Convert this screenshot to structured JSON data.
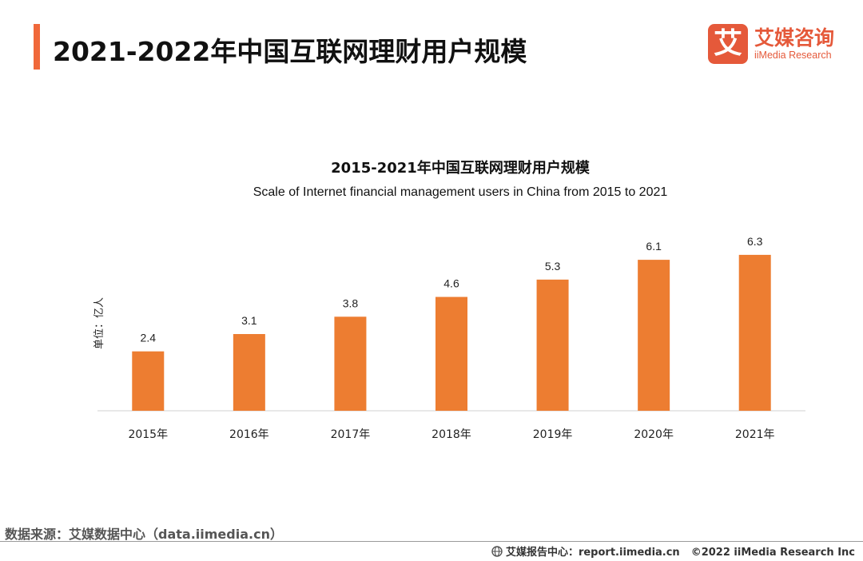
{
  "header": {
    "title": "2021-2022年中国互联网理财用户规模"
  },
  "logo": {
    "mark": "艾",
    "cn": "艾媒咨询",
    "en": "iiMedia Research"
  },
  "chart_data": {
    "type": "bar",
    "title": "2015-2021年中国互联网理财用户规模",
    "subtitle": "Scale of Internet financial management users in China from 2015 to 2021",
    "ylabel": "单位：亿人",
    "categories": [
      "2015年",
      "2016年",
      "2017年",
      "2018年",
      "2019年",
      "2020年",
      "2021年"
    ],
    "values": [
      2.4,
      3.1,
      3.8,
      4.6,
      5.3,
      6.1,
      6.3
    ],
    "data_labels": [
      "2.4",
      "3.1",
      "3.8",
      "4.6",
      "5.3",
      "6.1",
      "6.3"
    ],
    "ylim": [
      0,
      6.5
    ],
    "grid": false,
    "bar_color": "#ed7d31"
  },
  "footer": {
    "source": "数据来源：艾媒数据中心（data.iimedia.cn）",
    "report": "艾媒报告中心：report.iimedia.cn",
    "copyright": "©2022  iiMedia Research  Inc"
  },
  "colors": {
    "accent": "#f0683a",
    "brand": "#e5593a"
  }
}
